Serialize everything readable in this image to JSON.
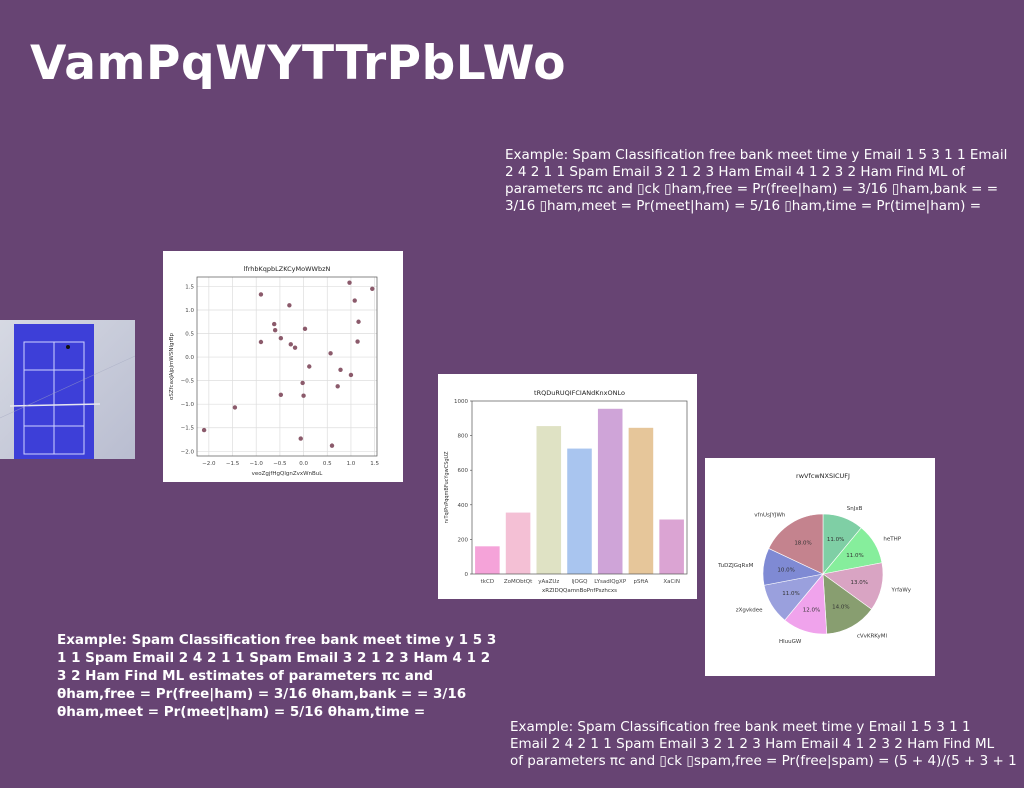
{
  "slide": {
    "title": "VamPqWYTTrPbLWo",
    "text_top": "Example: Spam Classification free bank meet time y Email 1 5 3 1 1 Email 2 4 2 1 1 Spam Email 3 2 1 2 3 Ham Email 4 1 2 3 2 Ham Find ML of parameters πc and ▯ck ▯ham,free = Pr(free|ham) = 3/16 ▯ham,bank = = 3/16 ▯ham,meet = Pr(meet|ham) = 5/16 ▯ham,time = Pr(time|ham) =",
    "text_bold": "Example: Spam Classification free bank meet time y 1 5 3 1 1 Spam Email 2 4 2 1 1 Spam Email 3 2 1 2 3 Ham 4 1 2 3 2 Ham Find ML estimates of parameters πc and θham,free = Pr(free|ham) = 3/16 θham,bank = = 3/16 θham,meet = Pr(meet|ham) = 5/16 θham,time =",
    "text_bottom_lines": [
      "Example: Spam Classification free bank meet time y Email 1 5 3 1 1",
      "Email 2 4 2 1 1 Spam Email 3 2 1 2 3 Ham Email 4 1 2 3 2 Ham Find ML",
      "of parameters πc and ▯ck ▯spam,free = Pr(free|spam) = (5 + 4)/(5 + 3 + 1"
    ]
  },
  "chart_data": [
    {
      "type": "scatter",
      "title": "lfrhbKqpbLZKCyMoWWbzN",
      "xlabel": "veoZgjfHgQlgnZvxWnBuL",
      "ylabel": "oSZfcaxJAjpjmWSNlgrBp",
      "xlim": [
        -2.25,
        1.55
      ],
      "ylim": [
        -2.1,
        1.7
      ],
      "xticks": [
        -2.0,
        -1.5,
        -1.0,
        -0.5,
        0.0,
        0.5,
        1.0,
        1.5
      ],
      "yticks": [
        -2.0,
        -1.5,
        -1.0,
        -0.5,
        0.0,
        0.5,
        1.0,
        1.5
      ],
      "xtick_labels": [
        "−2.0",
        "−1.5",
        "−1.0",
        "−0.5",
        "0.0",
        "0.5",
        "1.0",
        "1.5"
      ],
      "ytick_labels": [
        "−2.0",
        "−1.5",
        "−1.0",
        "−0.5",
        "0.0",
        "0.5",
        "1.0",
        "1.5"
      ],
      "grid": true,
      "color": "#8b5a6b",
      "points": [
        {
          "x": -2.1,
          "y": -1.55
        },
        {
          "x": -1.45,
          "y": -1.07
        },
        {
          "x": -0.9,
          "y": 1.33
        },
        {
          "x": -0.9,
          "y": 0.32
        },
        {
          "x": -0.62,
          "y": 0.7
        },
        {
          "x": -0.6,
          "y": 0.57
        },
        {
          "x": -0.48,
          "y": 0.4
        },
        {
          "x": -0.48,
          "y": -0.8
        },
        {
          "x": -0.3,
          "y": 1.1
        },
        {
          "x": -0.27,
          "y": 0.27
        },
        {
          "x": -0.18,
          "y": 0.2
        },
        {
          "x": -0.06,
          "y": -1.73
        },
        {
          "x": -0.02,
          "y": -0.55
        },
        {
          "x": 0.0,
          "y": -0.82
        },
        {
          "x": 0.03,
          "y": 0.6
        },
        {
          "x": 0.12,
          "y": -0.2
        },
        {
          "x": 0.57,
          "y": 0.08
        },
        {
          "x": 0.6,
          "y": -1.88
        },
        {
          "x": 0.72,
          "y": -0.62
        },
        {
          "x": 0.78,
          "y": -0.27
        },
        {
          "x": 0.97,
          "y": 1.58
        },
        {
          "x": 1.0,
          "y": -0.38
        },
        {
          "x": 1.08,
          "y": 1.2
        },
        {
          "x": 1.14,
          "y": 0.33
        },
        {
          "x": 1.16,
          "y": 0.75
        },
        {
          "x": 1.45,
          "y": 1.45
        }
      ]
    },
    {
      "type": "bar",
      "title": "tRQDuRUQIFCIANdKnxONLo",
      "xlabel": "xRZIDQQamnBoPnfPszhcxs",
      "ylabel": "rvTqlPnPqqmBFucYgwCSgUZ",
      "ylim": [
        0,
        1000
      ],
      "yticks": [
        0,
        200,
        400,
        600,
        800,
        1000
      ],
      "ytick_labels": [
        "0",
        "200",
        "400",
        "600",
        "800",
        "1000"
      ],
      "categories": [
        "tkCD",
        "ZoMObtQt",
        "yAaZUz",
        "ljOGQ",
        "LYsadlQgXP",
        "pSftA",
        "XaCiN"
      ],
      "values": [
        160,
        355,
        855,
        725,
        955,
        845,
        315
      ],
      "colors": [
        "#f5a3d9",
        "#f4c0d5",
        "#dfe2c4",
        "#a9c5ef",
        "#cfa4d8",
        "#e6c69a",
        "#dba4d3"
      ]
    },
    {
      "type": "pie",
      "title": "rwVfcwNXSICUFJ",
      "labels": [
        "SnJxB",
        "heTHP",
        "YrfaWy",
        "cVvKRKyMl",
        "HluuGW",
        "zXgvkdee",
        "TuDZJGqRxM",
        "vfnUsJYJWh"
      ],
      "values": [
        11.0,
        11.0,
        13.0,
        14.0,
        12.0,
        11.0,
        10.0,
        18.0
      ],
      "value_labels": [
        "11.0%",
        "11.0%",
        "13.0%",
        "14.0%",
        "12.0%",
        "11.0%",
        "10.0%",
        "18.0%"
      ],
      "colors": [
        "#7fcfa5",
        "#86ee9c",
        "#d9a4c3",
        "#889e70",
        "#f0a3ec",
        "#9aa0dd",
        "#7f8ad4",
        "#c4838e"
      ]
    }
  ]
}
